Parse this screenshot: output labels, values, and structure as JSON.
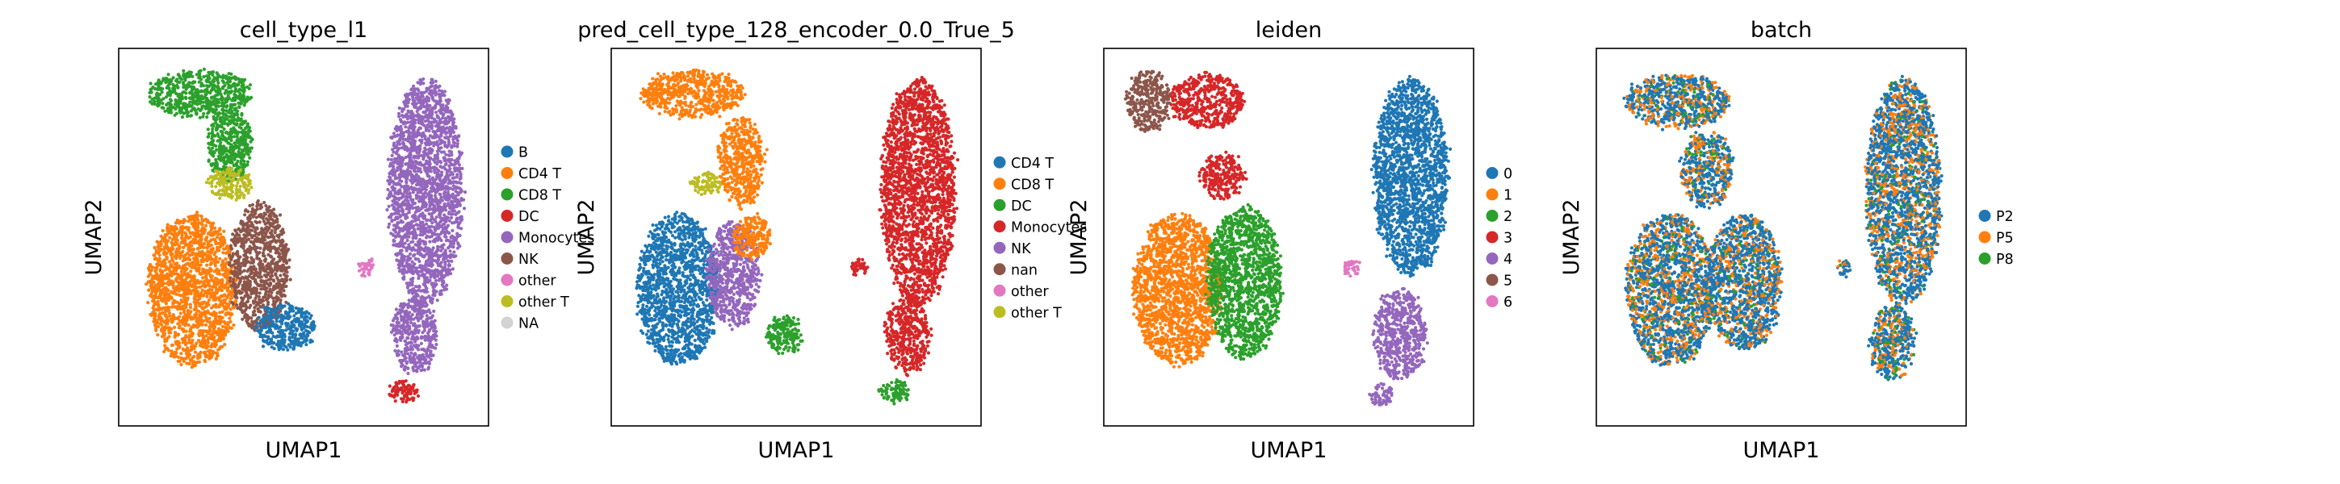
{
  "figure": {
    "background": "#ffffff"
  },
  "chart_data": [
    {
      "type": "scatter",
      "title": "cell_type_l1",
      "xlabel": "UMAP1",
      "ylabel": "UMAP2",
      "grid": false,
      "legend_placement": "right",
      "legend": [
        {
          "label": "B",
          "color": "#1f77b4"
        },
        {
          "label": "CD4 T",
          "color": "#ff7f0e"
        },
        {
          "label": "CD8 T",
          "color": "#2ca02c"
        },
        {
          "label": "DC",
          "color": "#d62728"
        },
        {
          "label": "Monocytes",
          "color": "#9467bd"
        },
        {
          "label": "NK",
          "color": "#8c564b"
        },
        {
          "label": "other",
          "color": "#e377c2"
        },
        {
          "label": "other T",
          "color": "#bcbd22"
        },
        {
          "label": "NA",
          "color": "#d3d3d3"
        }
      ],
      "regions": [
        {
          "label": "CD8 T",
          "cx": 0.22,
          "cy": 0.88,
          "rx": 0.14,
          "ry": 0.06
        },
        {
          "label": "CD8 T",
          "cx": 0.3,
          "cy": 0.74,
          "rx": 0.06,
          "ry": 0.1
        },
        {
          "label": "other T",
          "cx": 0.3,
          "cy": 0.64,
          "rx": 0.06,
          "ry": 0.04
        },
        {
          "label": "CD4 T",
          "cx": 0.2,
          "cy": 0.36,
          "rx": 0.12,
          "ry": 0.2
        },
        {
          "label": "NK",
          "cx": 0.38,
          "cy": 0.42,
          "rx": 0.08,
          "ry": 0.17
        },
        {
          "label": "B",
          "cx": 0.45,
          "cy": 0.26,
          "rx": 0.08,
          "ry": 0.06
        },
        {
          "label": "Monocytes",
          "cx": 0.83,
          "cy": 0.62,
          "rx": 0.1,
          "ry": 0.3
        },
        {
          "label": "Monocytes",
          "cx": 0.8,
          "cy": 0.24,
          "rx": 0.06,
          "ry": 0.1
        },
        {
          "label": "DC",
          "cx": 0.77,
          "cy": 0.09,
          "rx": 0.04,
          "ry": 0.03
        },
        {
          "label": "other",
          "cx": 0.67,
          "cy": 0.42,
          "rx": 0.02,
          "ry": 0.02
        }
      ]
    },
    {
      "type": "scatter",
      "title": "pred_cell_type_128_encoder_0.0_True_5",
      "xlabel": "UMAP1",
      "ylabel": "UMAP2",
      "grid": false,
      "legend_placement": "right",
      "legend": [
        {
          "label": "CD4 T",
          "color": "#1f77b4"
        },
        {
          "label": "CD8 T",
          "color": "#ff7f0e"
        },
        {
          "label": "DC",
          "color": "#2ca02c"
        },
        {
          "label": "Monocytes",
          "color": "#d62728"
        },
        {
          "label": "NK",
          "color": "#9467bd"
        },
        {
          "label": "nan",
          "color": "#8c564b"
        },
        {
          "label": "other",
          "color": "#e377c2"
        },
        {
          "label": "other T",
          "color": "#bcbd22"
        }
      ],
      "regions": [
        {
          "label": "CD8 T",
          "cx": 0.22,
          "cy": 0.88,
          "rx": 0.14,
          "ry": 0.06
        },
        {
          "label": "CD8 T",
          "cx": 0.35,
          "cy": 0.7,
          "rx": 0.06,
          "ry": 0.12
        },
        {
          "label": "other T",
          "cx": 0.26,
          "cy": 0.64,
          "rx": 0.04,
          "ry": 0.03
        },
        {
          "label": "CD4 T",
          "cx": 0.18,
          "cy": 0.36,
          "rx": 0.11,
          "ry": 0.2
        },
        {
          "label": "NK",
          "cx": 0.33,
          "cy": 0.4,
          "rx": 0.07,
          "ry": 0.14
        },
        {
          "label": "CD8 T",
          "cx": 0.38,
          "cy": 0.5,
          "rx": 0.05,
          "ry": 0.06
        },
        {
          "label": "DC",
          "cx": 0.47,
          "cy": 0.24,
          "rx": 0.05,
          "ry": 0.05
        },
        {
          "label": "Monocytes",
          "cx": 0.83,
          "cy": 0.62,
          "rx": 0.1,
          "ry": 0.3
        },
        {
          "label": "Monocytes",
          "cx": 0.8,
          "cy": 0.24,
          "rx": 0.06,
          "ry": 0.1
        },
        {
          "label": "DC",
          "cx": 0.77,
          "cy": 0.09,
          "rx": 0.04,
          "ry": 0.03
        },
        {
          "label": "Monocytes",
          "cx": 0.67,
          "cy": 0.42,
          "rx": 0.02,
          "ry": 0.02
        }
      ]
    },
    {
      "type": "scatter",
      "title": "leiden",
      "xlabel": "UMAP1",
      "ylabel": "UMAP2",
      "grid": false,
      "legend_placement": "right",
      "legend": [
        {
          "label": "0",
          "color": "#1f77b4"
        },
        {
          "label": "1",
          "color": "#ff7f0e"
        },
        {
          "label": "2",
          "color": "#2ca02c"
        },
        {
          "label": "3",
          "color": "#d62728"
        },
        {
          "label": "4",
          "color": "#9467bd"
        },
        {
          "label": "5",
          "color": "#8c564b"
        },
        {
          "label": "6",
          "color": "#e377c2"
        }
      ],
      "regions": [
        {
          "label": "5",
          "cx": 0.12,
          "cy": 0.86,
          "rx": 0.06,
          "ry": 0.08
        },
        {
          "label": "3",
          "cx": 0.28,
          "cy": 0.86,
          "rx": 0.1,
          "ry": 0.07
        },
        {
          "label": "3",
          "cx": 0.32,
          "cy": 0.66,
          "rx": 0.06,
          "ry": 0.06
        },
        {
          "label": "1",
          "cx": 0.2,
          "cy": 0.36,
          "rx": 0.12,
          "ry": 0.2
        },
        {
          "label": "2",
          "cx": 0.38,
          "cy": 0.38,
          "rx": 0.1,
          "ry": 0.2
        },
        {
          "label": "0",
          "cx": 0.83,
          "cy": 0.66,
          "rx": 0.1,
          "ry": 0.26
        },
        {
          "label": "4",
          "cx": 0.8,
          "cy": 0.24,
          "rx": 0.07,
          "ry": 0.12
        },
        {
          "label": "4",
          "cx": 0.75,
          "cy": 0.08,
          "rx": 0.03,
          "ry": 0.03
        },
        {
          "label": "6",
          "cx": 0.67,
          "cy": 0.42,
          "rx": 0.02,
          "ry": 0.02
        }
      ]
    },
    {
      "type": "scatter",
      "title": "batch",
      "xlabel": "UMAP1",
      "ylabel": "UMAP2",
      "grid": false,
      "legend_placement": "right",
      "legend": [
        {
          "label": "P2",
          "color": "#1f77b4"
        },
        {
          "label": "P5",
          "color": "#ff7f0e"
        },
        {
          "label": "P8",
          "color": "#2ca02c"
        }
      ],
      "mixture": [
        0.62,
        0.3,
        0.08
      ],
      "regions": [
        {
          "label": "mix",
          "cx": 0.22,
          "cy": 0.86,
          "rx": 0.14,
          "ry": 0.07
        },
        {
          "label": "mix",
          "cx": 0.3,
          "cy": 0.68,
          "rx": 0.07,
          "ry": 0.1
        },
        {
          "label": "mix",
          "cx": 0.2,
          "cy": 0.36,
          "rx": 0.12,
          "ry": 0.2
        },
        {
          "label": "mix",
          "cx": 0.4,
          "cy": 0.38,
          "rx": 0.1,
          "ry": 0.18
        },
        {
          "label": "mix",
          "cx": 0.83,
          "cy": 0.62,
          "rx": 0.1,
          "ry": 0.3
        },
        {
          "label": "mix",
          "cx": 0.8,
          "cy": 0.22,
          "rx": 0.06,
          "ry": 0.1
        },
        {
          "label": "mix",
          "cx": 0.67,
          "cy": 0.42,
          "rx": 0.02,
          "ry": 0.02
        }
      ]
    }
  ]
}
